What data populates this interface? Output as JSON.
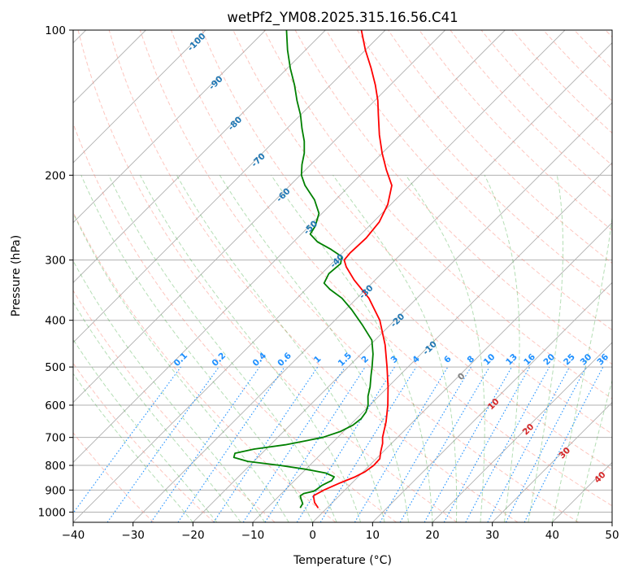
{
  "chart_data": {
    "type": "line",
    "title": "wetPf2_YM08.2025.315.16.56.C41",
    "xlabel": "Temperature (°C)",
    "ylabel": "Pressure (hPa)",
    "xlim": [
      -40,
      50
    ],
    "ylim": [
      1050,
      100
    ],
    "y_scale": "log",
    "skew": true,
    "grid": true,
    "x_ticks": [
      -40,
      -30,
      -20,
      -10,
      0,
      10,
      20,
      30,
      40,
      50
    ],
    "y_ticks": [
      1000,
      900,
      800,
      700,
      600,
      500,
      400,
      300,
      200,
      100
    ],
    "series": [
      {
        "role": "temperature",
        "color": "#ff0000",
        "points": [
          {
            "p": 980,
            "t": -1.5
          },
          {
            "p": 955,
            "t": -3.0
          },
          {
            "p": 925,
            "t": -4.3
          },
          {
            "p": 900,
            "t": -3.5
          },
          {
            "p": 870,
            "t": -2.0
          },
          {
            "p": 845,
            "t": -0.5
          },
          {
            "p": 825,
            "t": 0.3
          },
          {
            "p": 800,
            "t": 0.7
          },
          {
            "p": 775,
            "t": 0.6
          },
          {
            "p": 750,
            "t": -0.4
          },
          {
            "p": 720,
            "t": -1.5
          },
          {
            "p": 700,
            "t": -2.5
          },
          {
            "p": 650,
            "t": -4.5
          },
          {
            "p": 600,
            "t": -7.0
          },
          {
            "p": 550,
            "t": -10.0
          },
          {
            "p": 500,
            "t": -13.5
          },
          {
            "p": 450,
            "t": -17.5
          },
          {
            "p": 400,
            "t": -22.5
          },
          {
            "p": 360,
            "t": -28.0
          },
          {
            "p": 330,
            "t": -33.5
          },
          {
            "p": 310,
            "t": -37.0
          },
          {
            "p": 300,
            "t": -38.5
          },
          {
            "p": 290,
            "t": -38.7
          },
          {
            "p": 270,
            "t": -38.5
          },
          {
            "p": 250,
            "t": -39.0
          },
          {
            "p": 230,
            "t": -40.5
          },
          {
            "p": 210,
            "t": -43.0
          },
          {
            "p": 195,
            "t": -46.5
          },
          {
            "p": 180,
            "t": -50.0
          },
          {
            "p": 165,
            "t": -53.5
          },
          {
            "p": 150,
            "t": -57.0
          },
          {
            "p": 140,
            "t": -59.5
          },
          {
            "p": 130,
            "t": -62.5
          },
          {
            "p": 120,
            "t": -66.0
          },
          {
            "p": 110,
            "t": -70.0
          },
          {
            "p": 100,
            "t": -74.0
          }
        ]
      },
      {
        "role": "dewpoint",
        "color": "#008000",
        "points": [
          {
            "p": 980,
            "t": -4.5
          },
          {
            "p": 960,
            "t": -4.8
          },
          {
            "p": 940,
            "t": -5.8
          },
          {
            "p": 925,
            "t": -6.5
          },
          {
            "p": 915,
            "t": -6.3
          },
          {
            "p": 905,
            "t": -5.0
          },
          {
            "p": 895,
            "t": -4.8
          },
          {
            "p": 880,
            "t": -4.6
          },
          {
            "p": 870,
            "t": -4.2
          },
          {
            "p": 860,
            "t": -3.8
          },
          {
            "p": 845,
            "t": -4.0
          },
          {
            "p": 830,
            "t": -6.0
          },
          {
            "p": 815,
            "t": -10.0
          },
          {
            "p": 800,
            "t": -15.0
          },
          {
            "p": 785,
            "t": -21.0
          },
          {
            "p": 770,
            "t": -24.0
          },
          {
            "p": 755,
            "t": -24.5
          },
          {
            "p": 740,
            "t": -22.0
          },
          {
            "p": 725,
            "t": -17.5
          },
          {
            "p": 710,
            "t": -14.5
          },
          {
            "p": 700,
            "t": -12.5
          },
          {
            "p": 680,
            "t": -10.5
          },
          {
            "p": 660,
            "t": -9.5
          },
          {
            "p": 640,
            "t": -9.2
          },
          {
            "p": 620,
            "t": -9.5
          },
          {
            "p": 600,
            "t": -10.3
          },
          {
            "p": 575,
            "t": -11.8
          },
          {
            "p": 550,
            "t": -13.0
          },
          {
            "p": 520,
            "t": -14.8
          },
          {
            "p": 500,
            "t": -16.0
          },
          {
            "p": 470,
            "t": -18.0
          },
          {
            "p": 440,
            "t": -20.5
          },
          {
            "p": 410,
            "t": -24.5
          },
          {
            "p": 380,
            "t": -29.0
          },
          {
            "p": 360,
            "t": -32.5
          },
          {
            "p": 345,
            "t": -36.0
          },
          {
            "p": 335,
            "t": -38.0
          },
          {
            "p": 320,
            "t": -38.8
          },
          {
            "p": 305,
            "t": -38.5
          },
          {
            "p": 295,
            "t": -39.5
          },
          {
            "p": 285,
            "t": -42.5
          },
          {
            "p": 275,
            "t": -46.0
          },
          {
            "p": 265,
            "t": -48.5
          },
          {
            "p": 255,
            "t": -49.0
          },
          {
            "p": 240,
            "t": -50.5
          },
          {
            "p": 225,
            "t": -53.5
          },
          {
            "p": 210,
            "t": -57.5
          },
          {
            "p": 200,
            "t": -59.8
          },
          {
            "p": 190,
            "t": -61.5
          },
          {
            "p": 180,
            "t": -63.0
          },
          {
            "p": 170,
            "t": -65.0
          },
          {
            "p": 160,
            "t": -67.5
          },
          {
            "p": 150,
            "t": -70.0
          },
          {
            "p": 140,
            "t": -73.0
          },
          {
            "p": 130,
            "t": -76.0
          },
          {
            "p": 120,
            "t": -79.5
          },
          {
            "p": 110,
            "t": -83.0
          },
          {
            "p": 100,
            "t": -86.5
          }
        ]
      }
    ],
    "isotherm_labels": {
      "values": [
        -100,
        -90,
        -80,
        -70,
        -60,
        -50,
        -40,
        -30,
        -20,
        -10
      ],
      "color": "#1f77b4"
    },
    "mixing_ratio_labels": {
      "values": [
        "0.1",
        "0.2",
        "0.4",
        "0.6",
        "1",
        "1.5",
        "2",
        "3",
        "4",
        "6",
        "8",
        "10",
        "13",
        "16",
        "20",
        "25",
        "30",
        "36"
      ],
      "color": "#1e90ff"
    },
    "zero_isotherm_label": {
      "value": "0",
      "color": "#808080"
    },
    "positive_isotherm_labels": {
      "values": [
        10,
        20,
        30,
        40
      ],
      "color": "#d62728"
    },
    "background_line_colors": {
      "isotherm": "#b0b0b0",
      "dry_adiabat": "#fa8072",
      "moist_adiabat": "#2ca02c",
      "mixing_ratio": "#1e90ff",
      "isobar": "#b0b0b0"
    }
  }
}
